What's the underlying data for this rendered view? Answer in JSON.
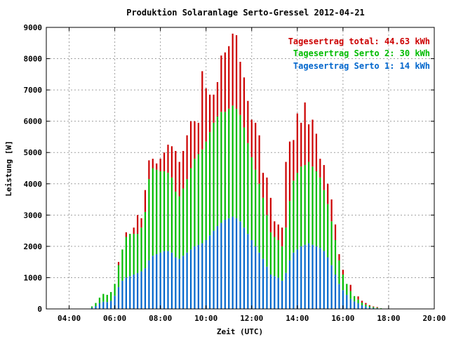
{
  "chart_data": {
    "type": "bar",
    "title": "Produktion Solaranlage Serto-Gressel 2012-04-21",
    "xlabel": "Zeit (UTC)",
    "ylabel": "Leistung [W]",
    "xlim": [
      "03:00",
      "20:00"
    ],
    "ylim": [
      0,
      9000
    ],
    "x_ticks": [
      "04:00",
      "06:00",
      "08:00",
      "10:00",
      "12:00",
      "14:00",
      "16:00",
      "18:00",
      "20:00"
    ],
    "y_ticks": [
      0,
      1000,
      2000,
      3000,
      4000,
      5000,
      6000,
      7000,
      8000,
      9000
    ],
    "grid": true,
    "stacked": true,
    "legend_position": "top-right",
    "legend": [
      {
        "label": "Tagesertrag total: 44.63 kWh",
        "color": "#cc0000"
      },
      {
        "label": "Tagesertrag Serto 2: 30 kWh",
        "color": "#00bb00"
      },
      {
        "label": "Tagesertrag Serto 1: 14 kWh",
        "color": "#0066cc"
      }
    ],
    "x": [
      "05:00",
      "05:10",
      "05:20",
      "05:30",
      "05:40",
      "05:50",
      "06:00",
      "06:10",
      "06:20",
      "06:30",
      "06:40",
      "06:50",
      "07:00",
      "07:10",
      "07:20",
      "07:30",
      "07:40",
      "07:50",
      "08:00",
      "08:10",
      "08:20",
      "08:30",
      "08:40",
      "08:50",
      "09:00",
      "09:10",
      "09:20",
      "09:30",
      "09:40",
      "09:50",
      "10:00",
      "10:10",
      "10:20",
      "10:30",
      "10:40",
      "10:50",
      "11:00",
      "11:10",
      "11:20",
      "11:30",
      "11:40",
      "11:50",
      "12:00",
      "12:10",
      "12:20",
      "12:30",
      "12:40",
      "12:50",
      "13:00",
      "13:10",
      "13:20",
      "13:30",
      "13:40",
      "13:50",
      "14:00",
      "14:10",
      "14:20",
      "14:30",
      "14:40",
      "14:50",
      "15:00",
      "15:10",
      "15:20",
      "15:30",
      "15:40",
      "15:50",
      "16:00",
      "16:10",
      "16:20",
      "16:30",
      "16:40",
      "16:50",
      "17:00",
      "17:10",
      "17:20",
      "17:30",
      "17:40",
      "17:50"
    ],
    "series": [
      {
        "name": "Tagesertrag Serto 1: 14 kWh",
        "color": "#0066cc",
        "values": [
          40,
          90,
          180,
          230,
          220,
          260,
          420,
          700,
          900,
          1000,
          1050,
          1100,
          1150,
          1200,
          1300,
          1550,
          1700,
          1750,
          1800,
          1850,
          1850,
          1800,
          1650,
          1600,
          1700,
          1800,
          1900,
          2000,
          2050,
          2100,
          2200,
          2350,
          2500,
          2650,
          2750,
          2850,
          2900,
          2950,
          2900,
          2800,
          2600,
          2400,
          2200,
          2000,
          1800,
          1600,
          1350,
          1100,
          1050,
          1000,
          900,
          1150,
          1550,
          1800,
          1900,
          2000,
          2050,
          2100,
          2050,
          2000,
          1950,
          1850,
          1650,
          1400,
          1100,
          800,
          600,
          450,
          320,
          240,
          180,
          120,
          80,
          50,
          30,
          20,
          10,
          0
        ]
      },
      {
        "name": "Tagesertrag Serto 2: 30 kWh",
        "color": "#00bb00",
        "values": [
          40,
          100,
          180,
          250,
          230,
          280,
          380,
          700,
          1000,
          1300,
          1350,
          1300,
          1250,
          1400,
          1800,
          2600,
          2800,
          2700,
          2600,
          2550,
          2500,
          2400,
          2100,
          2000,
          2150,
          2350,
          2600,
          2800,
          2900,
          3000,
          3150,
          3300,
          3450,
          3500,
          3550,
          3450,
          3500,
          3550,
          3500,
          3400,
          3200,
          2900,
          2650,
          2450,
          2200,
          1950,
          1650,
          1350,
          1250,
          1200,
          1100,
          1450,
          1900,
          2300,
          2450,
          2550,
          2550,
          2600,
          2500,
          2400,
          2250,
          1950,
          1700,
          1400,
          1100,
          750,
          500,
          350,
          250,
          170,
          120,
          80,
          60,
          40,
          30,
          20,
          10,
          0
        ]
      },
      {
        "name": "Tagesertrag total: 44.63 kWh",
        "color": "#cc0000",
        "values": [
          0,
          0,
          0,
          0,
          0,
          0,
          0,
          100,
          0,
          150,
          0,
          200,
          600,
          300,
          700,
          600,
          300,
          200,
          400,
          600,
          900,
          1000,
          1300,
          1100,
          1200,
          1400,
          1500,
          1200,
          1000,
          2500,
          1700,
          1200,
          900,
          1100,
          1800,
          1900,
          2000,
          2300,
          2350,
          1700,
          1600,
          1350,
          1200,
          1500,
          1550,
          800,
          1200,
          1100,
          500,
          500,
          600,
          2100,
          1900,
          1300,
          1900,
          1400,
          2000,
          1200,
          1500,
          1200,
          600,
          800,
          650,
          700,
          500,
          200,
          150,
          0,
          200,
          0,
          100,
          60,
          50,
          30,
          20,
          20,
          0,
          0
        ]
      }
    ]
  }
}
